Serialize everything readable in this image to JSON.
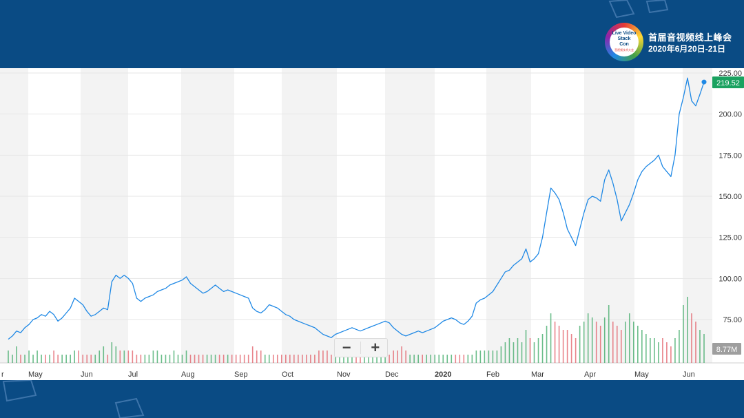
{
  "header": {
    "logo_lines": [
      "Live Video",
      "Stack",
      "Con"
    ],
    "logo_subtext": "音视频技术大会",
    "event_title": "首届音视频线上峰会",
    "event_date": "2020年6月20日-21日"
  },
  "controls": {
    "zoom_out": "−",
    "zoom_in": "+"
  },
  "colors": {
    "background_band": "#0a4b84",
    "price_line": "#1e88e5",
    "last_price_badge": "#1aa260",
    "volume_up": "#2ea35a",
    "volume_down": "#e0505a",
    "stripe": "#f3f3f3"
  },
  "chart_data": {
    "type": "line",
    "x_tick_labels": [
      "r",
      "May",
      "Jun",
      "Jul",
      "Aug",
      "Sep",
      "Oct",
      "Nov",
      "Dec",
      "2020",
      "Feb",
      "Mar",
      "Apr",
      "May",
      "Jun"
    ],
    "ylim": [
      50,
      225
    ],
    "yticks": [
      75,
      100,
      125,
      150,
      175,
      200,
      225
    ],
    "ytick_labels": [
      "75.00",
      "100.00",
      "125.00",
      "150.00",
      "175.00",
      "200.00",
      "225.00"
    ],
    "last_price_label": "219.52",
    "volume_label": "8.77M",
    "grid": "horizontal",
    "series": [
      {
        "values": [
          63,
          65,
          68,
          67,
          70,
          72,
          75,
          76,
          78,
          77,
          80,
          78,
          74,
          76,
          79,
          82,
          88,
          86,
          84,
          80,
          77,
          78,
          80,
          82,
          81,
          98,
          102,
          100,
          102,
          100,
          97,
          88,
          86,
          88,
          89,
          90,
          92,
          93,
          94,
          96,
          97,
          98,
          99,
          101,
          97,
          95,
          93,
          91,
          92,
          94,
          96,
          94,
          92,
          93,
          92,
          91,
          90,
          89,
          88,
          82,
          80,
          79,
          81,
          84,
          83,
          82,
          80,
          78,
          77,
          75,
          74,
          73,
          72,
          71,
          70,
          68,
          66,
          65,
          64,
          66,
          67,
          68,
          69,
          70,
          69,
          68,
          69,
          70,
          71,
          72,
          73,
          74,
          73,
          70,
          68,
          66,
          65,
          66,
          67,
          68,
          67,
          68,
          69,
          70,
          72,
          74,
          75,
          76,
          75,
          73,
          72,
          74,
          77,
          85,
          87,
          88,
          90,
          92,
          96,
          100,
          104,
          105,
          108,
          110,
          112,
          118,
          110,
          112,
          115,
          125,
          140,
          155,
          152,
          148,
          140,
          130,
          125,
          120,
          130,
          140,
          148,
          150,
          149,
          147,
          160,
          166,
          158,
          148,
          135,
          140,
          145,
          152,
          160,
          165,
          168,
          170,
          172,
          175,
          168,
          165,
          162,
          175,
          200,
          210,
          222,
          208,
          205,
          212,
          219.52
        ]
      }
    ],
    "volume_bars": [
      3,
      2,
      4,
      2,
      2,
      3,
      2,
      3,
      2,
      2,
      2,
      3,
      2,
      2,
      2,
      2,
      3,
      3,
      2,
      2,
      2,
      2,
      3,
      4,
      2,
      5,
      4,
      3,
      3,
      3,
      3,
      2,
      2,
      2,
      2,
      3,
      3,
      2,
      2,
      2,
      3,
      2,
      2,
      3,
      2,
      2,
      2,
      2,
      2,
      2,
      2,
      2,
      2,
      2,
      2,
      2,
      2,
      2,
      2,
      4,
      3,
      3,
      2,
      2,
      2,
      2,
      2,
      2,
      2,
      2,
      2,
      2,
      2,
      2,
      2,
      3,
      3,
      3,
      2,
      2,
      2,
      2,
      2,
      2,
      2,
      2,
      2,
      2,
      2,
      2,
      2,
      2,
      2,
      3,
      3,
      4,
      3,
      2,
      2,
      2,
      2,
      2,
      2,
      2,
      2,
      2,
      2,
      2,
      2,
      2,
      2,
      2,
      2,
      3,
      3,
      3,
      3,
      3,
      3,
      4,
      5,
      6,
      5,
      6,
      5,
      8,
      6,
      5,
      6,
      7,
      9,
      12,
      10,
      9,
      8,
      8,
      7,
      6,
      9,
      10,
      12,
      11,
      10,
      9,
      11,
      14,
      10,
      9,
      8,
      10,
      12,
      10,
      9,
      8,
      7,
      6,
      6,
      5,
      6,
      5,
      4,
      6,
      8,
      14,
      16,
      12,
      10,
      8,
      7
    ]
  }
}
